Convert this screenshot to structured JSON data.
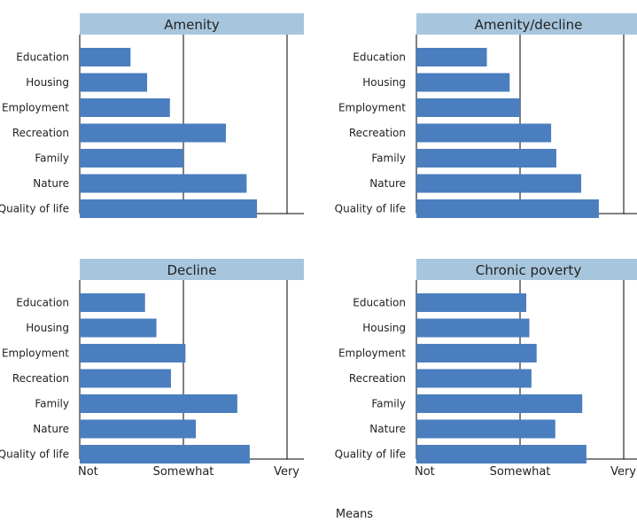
{
  "colors": {
    "bar": "#4a7ebf",
    "title_bg": "#a7c6dd",
    "axis": "#000000",
    "text": "#222222"
  },
  "chart_data": {
    "type": "bar",
    "orientation": "horizontal",
    "layout": "2x2 small multiples",
    "categories": [
      "Education",
      "Housing",
      "Employment",
      "Recreation",
      "Family",
      "Nature",
      "Quality of life"
    ],
    "xlabel": "Means",
    "xticks": [
      "Not",
      "Somewhat",
      "Very"
    ],
    "xlim": [
      1,
      3
    ],
    "grid": "vertical lines at each tick",
    "panels": [
      {
        "title": "Amenity",
        "values": [
          1.49,
          1.65,
          1.87,
          2.41,
          2.0,
          2.61,
          2.71
        ]
      },
      {
        "title": "Amenity/decline",
        "values": [
          1.68,
          1.9,
          2.0,
          2.3,
          2.35,
          2.59,
          2.76
        ]
      },
      {
        "title": "Decline",
        "values": [
          1.63,
          1.74,
          2.02,
          1.88,
          2.52,
          2.12,
          2.64
        ]
      },
      {
        "title": "Chronic poverty",
        "values": [
          2.06,
          2.09,
          2.16,
          2.11,
          2.6,
          2.34,
          2.64
        ]
      }
    ]
  }
}
